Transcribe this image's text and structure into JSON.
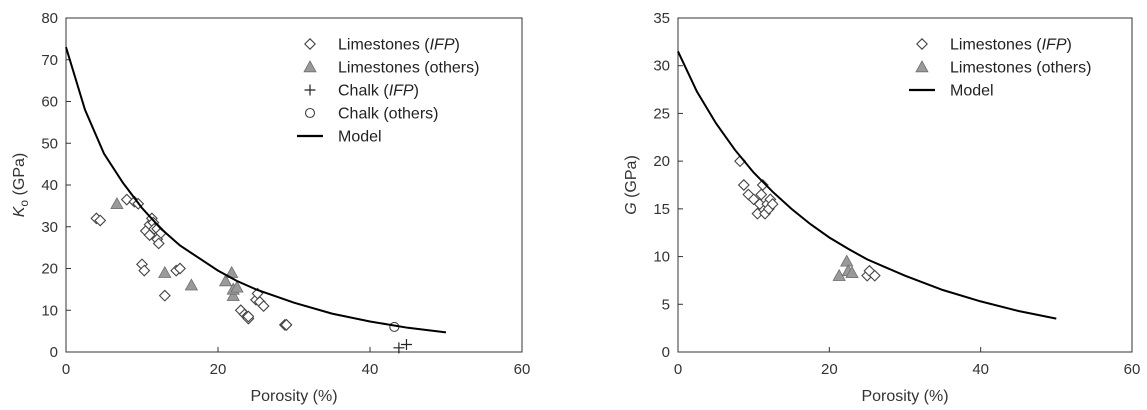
{
  "colors": {
    "axis": "#333333",
    "marker_stroke": "#444444",
    "filled_marker": "#9a9a9a",
    "model_line": "#000000"
  },
  "chart_data": [
    {
      "type": "scatter",
      "xlabel": "Porosity (%)",
      "ylabel_symbol": "K",
      "ylabel_subscript": "o",
      "ylabel_unit": " (GPa)",
      "xlim": [
        0,
        60
      ],
      "ylim": [
        0,
        80
      ],
      "xticks": [
        0,
        20,
        40,
        60
      ],
      "yticks": [
        0,
        10,
        20,
        30,
        40,
        50,
        60,
        70,
        80
      ],
      "legend_position": "top-right",
      "series": [
        {
          "name": "Limestones (IFP)",
          "legend_parts": [
            "Limestones (",
            "IFP",
            ")"
          ],
          "marker": "diamond-open",
          "points": [
            [
              4,
              32
            ],
            [
              4.5,
              31.5
            ],
            [
              8,
              36.5
            ],
            [
              9,
              36
            ],
            [
              9.5,
              35.5
            ],
            [
              10,
              21
            ],
            [
              10.3,
              19.5
            ],
            [
              10.5,
              29
            ],
            [
              11,
              28
            ],
            [
              11,
              30.5
            ],
            [
              11.3,
              32
            ],
            [
              11.5,
              31
            ],
            [
              11.6,
              29.5
            ],
            [
              12,
              27
            ],
            [
              12,
              29.5
            ],
            [
              12.2,
              26
            ],
            [
              12.5,
              28.5
            ],
            [
              13,
              13.5
            ],
            [
              14.5,
              19.5
            ],
            [
              15,
              20
            ],
            [
              23,
              10
            ],
            [
              23.5,
              9
            ],
            [
              23.8,
              8.5
            ],
            [
              24,
              8
            ],
            [
              24,
              8.5
            ],
            [
              25,
              12.5
            ],
            [
              25.2,
              14
            ],
            [
              25.5,
              12
            ],
            [
              26,
              11
            ],
            [
              28.8,
              6.5
            ],
            [
              29,
              6.5
            ],
            [
              29,
              6.5
            ]
          ]
        },
        {
          "name": "Limestones (others)",
          "legend_parts": [
            "Limestones (others)"
          ],
          "marker": "triangle-filled",
          "points": [
            [
              6.7,
              35.5
            ],
            [
              13,
              19
            ],
            [
              16.5,
              16
            ],
            [
              21,
              17
            ],
            [
              21.8,
              19
            ],
            [
              22,
              13.5
            ],
            [
              22,
              15
            ],
            [
              22.5,
              15.5
            ]
          ]
        },
        {
          "name": "Chalk (IFP)",
          "legend_parts": [
            "Chalk (",
            "IFP",
            ")"
          ],
          "marker": "plus",
          "points": [
            [
              43.8,
              1
            ],
            [
              44.8,
              1.8
            ]
          ]
        },
        {
          "name": "Chalk (others)",
          "legend_parts": [
            "Chalk (others)"
          ],
          "marker": "circle-open",
          "points": [
            [
              43.2,
              6
            ]
          ]
        },
        {
          "name": "Model",
          "legend_parts": [
            "Model"
          ],
          "marker": "line",
          "points": [
            [
              0,
              73
            ],
            [
              2.5,
              58
            ],
            [
              5,
              47.5
            ],
            [
              7.5,
              40.5
            ],
            [
              10,
              34.5
            ],
            [
              12.5,
              29.5
            ],
            [
              15,
              25.5
            ],
            [
              17.5,
              22.5
            ],
            [
              20,
              19.5
            ],
            [
              22.5,
              17
            ],
            [
              25,
              15
            ],
            [
              30,
              11.8
            ],
            [
              35,
              9.2
            ],
            [
              40,
              7.3
            ],
            [
              45,
              5.8
            ],
            [
              50,
              4.7
            ]
          ]
        }
      ]
    },
    {
      "type": "scatter",
      "xlabel": "Porosity (%)",
      "ylabel_symbol": "G",
      "ylabel_subscript": "",
      "ylabel_unit": " (GPa)",
      "xlim": [
        0,
        60
      ],
      "ylim": [
        0,
        35
      ],
      "xticks": [
        0,
        20,
        40,
        60
      ],
      "yticks": [
        0,
        5,
        10,
        15,
        20,
        25,
        30,
        35
      ],
      "legend_position": "top-right",
      "series": [
        {
          "name": "Limestones (IFP)",
          "legend_parts": [
            "Limestones (",
            "IFP",
            ")"
          ],
          "marker": "diamond-open",
          "points": [
            [
              8.2,
              20
            ],
            [
              8.7,
              17.5
            ],
            [
              9.3,
              16.5
            ],
            [
              10,
              16
            ],
            [
              10.5,
              14.5
            ],
            [
              10.8,
              15.5
            ],
            [
              11,
              16.5
            ],
            [
              11.2,
              17.5
            ],
            [
              11.5,
              14.5
            ],
            [
              11.8,
              15.5
            ],
            [
              12,
              15
            ],
            [
              12.2,
              16
            ],
            [
              12.5,
              15.5
            ],
            [
              25,
              8
            ],
            [
              25.3,
              8.5
            ],
            [
              26,
              8
            ]
          ]
        },
        {
          "name": "Limestones (others)",
          "legend_parts": [
            "Limestones (others)"
          ],
          "marker": "triangle-filled",
          "points": [
            [
              21.3,
              8
            ],
            [
              22.3,
              9.5
            ],
            [
              22.5,
              8.5
            ],
            [
              23,
              8.3
            ]
          ]
        },
        {
          "name": "Model",
          "legend_parts": [
            "Model"
          ],
          "marker": "line",
          "points": [
            [
              0,
              31.5
            ],
            [
              2.5,
              27.3
            ],
            [
              5,
              24
            ],
            [
              7.5,
              21.2
            ],
            [
              10,
              18.8
            ],
            [
              12.5,
              16.8
            ],
            [
              15,
              15
            ],
            [
              17.5,
              13.4
            ],
            [
              20,
              12
            ],
            [
              22.5,
              10.8
            ],
            [
              25,
              9.7
            ],
            [
              30,
              8
            ],
            [
              35,
              6.5
            ],
            [
              40,
              5.3
            ],
            [
              45,
              4.3
            ],
            [
              50,
              3.5
            ]
          ]
        }
      ]
    }
  ]
}
